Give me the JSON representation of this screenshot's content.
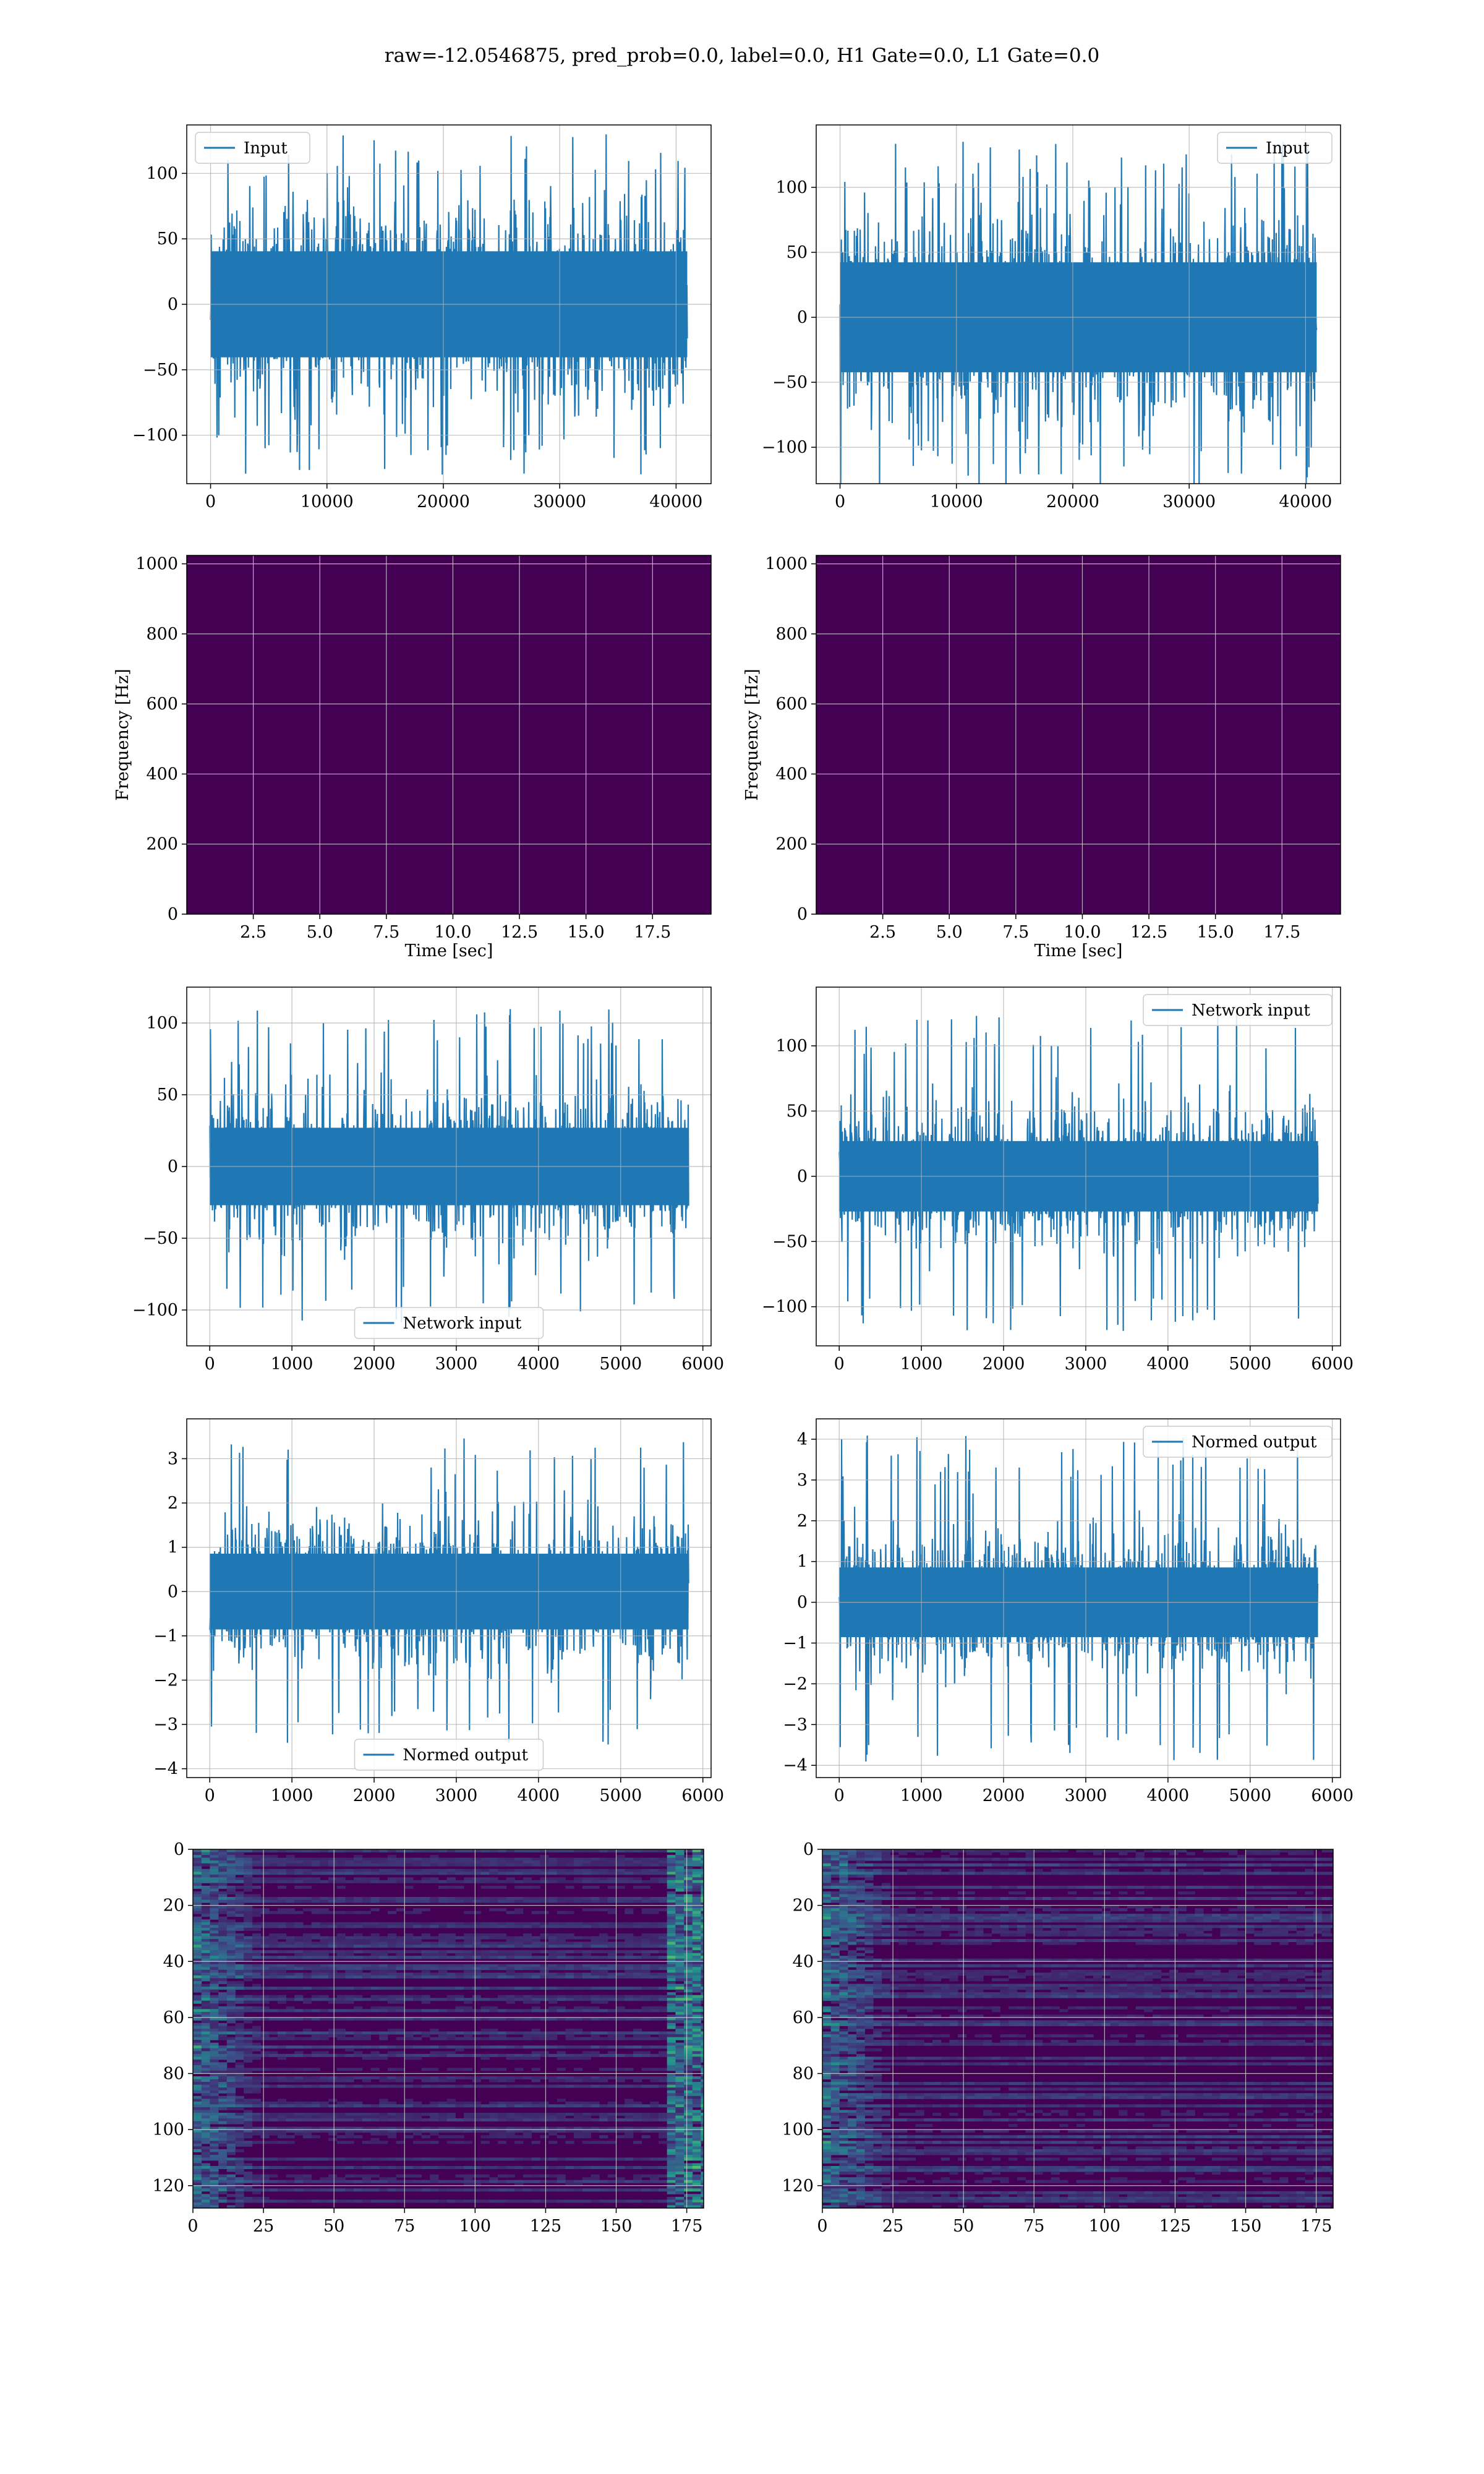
{
  "title": "raw=-12.0546875, pred_prob=0.0, label=0.0, H1 Gate=0.0, L1 Gate=0.0",
  "colors": {
    "series": "#1f77b4",
    "grid": "#b0b0b0",
    "spectro_bg": "#440154"
  },
  "chart_data": [
    {
      "type": "line",
      "row": 1,
      "col": 1,
      "legend": "Input",
      "legend_loc": "upper left",
      "x_range": [
        0,
        40960
      ],
      "ylim": [
        -137,
        137
      ],
      "amp": 45,
      "peak": 130,
      "xticks": [
        0,
        10000,
        20000,
        30000,
        40000
      ],
      "xtick_labels": [
        "0",
        "10000",
        "20000",
        "30000",
        "40000"
      ],
      "yticks": [
        100,
        50,
        0,
        -50,
        -100
      ],
      "ytick_labels": [
        "100",
        "50",
        "0",
        "−50",
        "−100"
      ],
      "grid": true
    },
    {
      "type": "line",
      "row": 1,
      "col": 2,
      "legend": "Input",
      "legend_loc": "upper right",
      "x_range": [
        0,
        40960
      ],
      "ylim": [
        -128,
        148
      ],
      "amp": 47,
      "peak": 135,
      "xticks": [
        0,
        10000,
        20000,
        30000,
        40000
      ],
      "xtick_labels": [
        "0",
        "10000",
        "20000",
        "30000",
        "40000"
      ],
      "yticks": [
        100,
        50,
        0,
        -50,
        -100
      ],
      "ytick_labels": [
        "100",
        "50",
        "0",
        "−50",
        "−100"
      ],
      "grid": true
    },
    {
      "type": "heatmap",
      "row": 2,
      "col": 1,
      "xlabel": "Time [sec]",
      "ylabel": "Frequency [Hz]",
      "xlim": [
        0,
        19.7
      ],
      "ylim": [
        0,
        1024
      ],
      "xticks": [
        2.5,
        5.0,
        7.5,
        10.0,
        12.5,
        15.0,
        17.5
      ],
      "xtick_labels": [
        "2.5",
        "5.0",
        "7.5",
        "10.0",
        "12.5",
        "15.0",
        "17.5"
      ],
      "yticks": [
        0,
        200,
        400,
        600,
        800,
        1000
      ],
      "ytick_labels": [
        "0",
        "200",
        "400",
        "600",
        "800",
        "1000"
      ],
      "grid": true
    },
    {
      "type": "heatmap",
      "row": 2,
      "col": 2,
      "xlabel": "Time [sec]",
      "ylabel": "Frequency [Hz]",
      "xlim": [
        0,
        19.7
      ],
      "ylim": [
        0,
        1024
      ],
      "xticks": [
        2.5,
        5.0,
        7.5,
        10.0,
        12.5,
        15.0,
        17.5
      ],
      "xtick_labels": [
        "2.5",
        "5.0",
        "7.5",
        "10.0",
        "12.5",
        "15.0",
        "17.5"
      ],
      "yticks": [
        0,
        200,
        400,
        600,
        800,
        1000
      ],
      "ytick_labels": [
        "0",
        "200",
        "400",
        "600",
        "800",
        "1000"
      ],
      "grid": true
    },
    {
      "type": "line",
      "row": 3,
      "col": 1,
      "legend": "Network input",
      "legend_loc": "lower center",
      "x_range": [
        0,
        5826
      ],
      "xlim": [
        -280,
        6100
      ],
      "ylim": [
        -125,
        125
      ],
      "amp": 30,
      "peak": 110,
      "xticks": [
        0,
        1000,
        2000,
        3000,
        4000,
        5000,
        6000
      ],
      "xtick_labels": [
        "0",
        "1000",
        "2000",
        "3000",
        "4000",
        "5000",
        "6000"
      ],
      "yticks": [
        100,
        50,
        0,
        -50,
        -100
      ],
      "ytick_labels": [
        "100",
        "50",
        "0",
        "−50",
        "−100"
      ],
      "grid": true
    },
    {
      "type": "line",
      "row": 3,
      "col": 2,
      "legend": "Network input",
      "legend_loc": "upper right",
      "x_range": [
        0,
        5826
      ],
      "xlim": [
        -280,
        6100
      ],
      "ylim": [
        -130,
        145
      ],
      "amp": 30,
      "peak": 125,
      "xticks": [
        0,
        1000,
        2000,
        3000,
        4000,
        5000,
        6000
      ],
      "xtick_labels": [
        "0",
        "1000",
        "2000",
        "3000",
        "4000",
        "5000",
        "6000"
      ],
      "yticks": [
        100,
        50,
        0,
        -50,
        -100
      ],
      "ytick_labels": [
        "100",
        "50",
        "0",
        "−50",
        "−100"
      ],
      "grid": true
    },
    {
      "type": "line",
      "row": 4,
      "col": 1,
      "legend": "Normed output",
      "legend_loc": "lower center",
      "x_range": [
        0,
        5826
      ],
      "xlim": [
        -280,
        6100
      ],
      "ylim": [
        -4.2,
        3.9
      ],
      "amp": 0.95,
      "peak": 3.5,
      "xticks": [
        0,
        1000,
        2000,
        3000,
        4000,
        5000,
        6000
      ],
      "xtick_labels": [
        "0",
        "1000",
        "2000",
        "3000",
        "4000",
        "5000",
        "6000"
      ],
      "yticks": [
        3,
        2,
        1,
        0,
        -1,
        -2,
        -3,
        -4
      ],
      "ytick_labels": [
        "3",
        "2",
        "1",
        "0",
        "−1",
        "−2",
        "−3",
        "−4"
      ],
      "grid": true
    },
    {
      "type": "line",
      "row": 4,
      "col": 2,
      "legend": "Normed output",
      "legend_loc": "upper right",
      "x_range": [
        0,
        5826
      ],
      "xlim": [
        -280,
        6100
      ],
      "ylim": [
        -4.3,
        4.5
      ],
      "amp": 0.95,
      "peak": 4.1,
      "xticks": [
        0,
        1000,
        2000,
        3000,
        4000,
        5000,
        6000
      ],
      "xtick_labels": [
        "0",
        "1000",
        "2000",
        "3000",
        "4000",
        "5000",
        "6000"
      ],
      "yticks": [
        4,
        3,
        2,
        1,
        0,
        -1,
        -2,
        -3,
        -4
      ],
      "ytick_labels": [
        "4",
        "3",
        "2",
        "1",
        "0",
        "−1",
        "−2",
        "−3",
        "−4"
      ],
      "grid": true
    },
    {
      "type": "heatmap",
      "row": 5,
      "col": 1,
      "xlim": [
        0,
        181
      ],
      "ylim": [
        128,
        0
      ],
      "xticks": [
        0,
        25,
        50,
        75,
        100,
        125,
        150,
        175
      ],
      "xtick_labels": [
        "0",
        "25",
        "50",
        "75",
        "100",
        "125",
        "150",
        "175"
      ],
      "yticks": [
        0,
        20,
        40,
        60,
        80,
        100,
        120
      ],
      "ytick_labels": [
        "0",
        "20",
        "40",
        "60",
        "80",
        "100",
        "120"
      ],
      "grid": true
    },
    {
      "type": "heatmap",
      "row": 5,
      "col": 2,
      "xlim": [
        0,
        181
      ],
      "ylim": [
        128,
        0
      ],
      "xticks": [
        0,
        25,
        50,
        75,
        100,
        125,
        150,
        175
      ],
      "xtick_labels": [
        "0",
        "25",
        "50",
        "75",
        "100",
        "125",
        "150",
        "175"
      ],
      "yticks": [
        0,
        20,
        40,
        60,
        80,
        100,
        120
      ],
      "ytick_labels": [
        "0",
        "20",
        "40",
        "60",
        "80",
        "100",
        "120"
      ],
      "grid": true
    }
  ]
}
